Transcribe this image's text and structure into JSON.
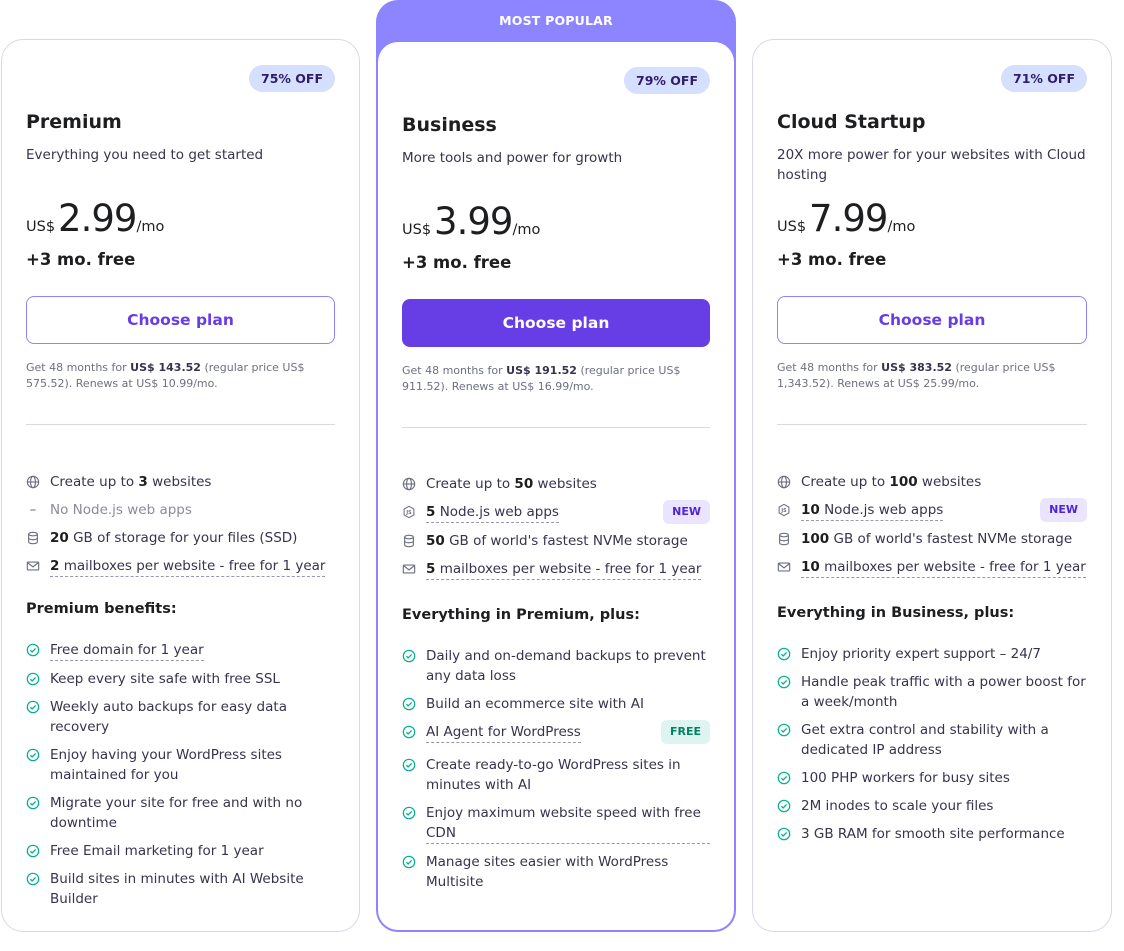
{
  "plans": [
    {
      "badge": "75% OFF",
      "name": "Premium",
      "desc": "Everything you need to get started",
      "currency": "US$",
      "amount": "2.99",
      "period": "/mo",
      "free": "+3 mo. free",
      "button": "Choose plan",
      "fine": {
        "prefix": "Get 48 months for ",
        "total": "US$ 143.52",
        "suffix": " (regular price US$ 575.52). Renews at US$ 10.99/mo."
      },
      "features": [
        {
          "icon": "globe-icon",
          "pre": "Create up to ",
          "bold": "3",
          "post": " websites"
        },
        {
          "icon": "dash-icon",
          "text": "No Node.js web apps"
        },
        {
          "icon": "database-icon",
          "bold": "20",
          "post": " GB of storage for your files (SSD)"
        },
        {
          "icon": "mail-icon",
          "bold": "2",
          "under": " mailboxes per website - free for 1 year"
        }
      ],
      "benefits_title": "Premium benefits:",
      "benefits": [
        {
          "text": "Free domain for 1 year",
          "underline": true
        },
        {
          "text": "Keep every site safe with free SSL"
        },
        {
          "text": "Weekly auto backups for easy data recovery"
        },
        {
          "text": "Enjoy having your WordPress sites maintained for you"
        },
        {
          "text": "Migrate your site for free and with no downtime"
        },
        {
          "text": "Free Email marketing for 1 year"
        },
        {
          "text": "Build sites in minutes with AI Website Builder"
        }
      ]
    },
    {
      "ribbon": "MOST POPULAR",
      "badge": "79% OFF",
      "name": "Business",
      "desc": "More tools and power for growth",
      "currency": "US$",
      "amount": "3.99",
      "period": "/mo",
      "free": "+3 mo. free",
      "button": "Choose plan",
      "fine": {
        "prefix": "Get 48 months for ",
        "total": "US$ 191.52",
        "suffix": " (regular price US$ 911.52). Renews at US$ 16.99/mo."
      },
      "features": [
        {
          "icon": "globe-icon",
          "pre": "Create up to ",
          "bold": "50",
          "post": " websites"
        },
        {
          "icon": "nodejs-icon",
          "bold": "5",
          "under": " Node.js web apps",
          "tag": "NEW"
        },
        {
          "icon": "database-icon",
          "bold": "50",
          "post": " GB of world's fastest NVMe storage"
        },
        {
          "icon": "mail-icon",
          "bold": "5",
          "under": " mailboxes per website - free for 1 year"
        }
      ],
      "benefits_title": "Everything in Premium, plus:",
      "benefits": [
        {
          "text": "Daily and on-demand backups to prevent any data loss"
        },
        {
          "text": "Build an ecommerce site with AI"
        },
        {
          "text": "AI Agent for WordPress",
          "underline": true,
          "tag": "FREE"
        },
        {
          "text": "Create ready-to-go WordPress sites in minutes with AI"
        },
        {
          "text": "Enjoy maximum website speed with free CDN",
          "underline": true
        },
        {
          "text": "Manage sites easier with WordPress Multisite"
        }
      ]
    },
    {
      "badge": "71% OFF",
      "name": "Cloud Startup",
      "desc": "20X more power for your websites with Cloud hosting",
      "currency": "US$",
      "amount": "7.99",
      "period": "/mo",
      "free": "+3 mo. free",
      "button": "Choose plan",
      "fine": {
        "prefix": "Get 48 months for ",
        "total": "US$ 383.52",
        "suffix": " (regular price US$ 1,343.52). Renews at US$ 25.99/mo."
      },
      "features": [
        {
          "icon": "globe-icon",
          "pre": "Create up to ",
          "bold": "100",
          "post": " websites"
        },
        {
          "icon": "nodejs-icon",
          "bold": "10",
          "under": " Node.js web apps",
          "tag": "NEW"
        },
        {
          "icon": "database-icon",
          "bold": "100",
          "post": " GB of world's fastest NVMe storage"
        },
        {
          "icon": "mail-icon",
          "bold": "10",
          "under": " mailboxes per website - free for 1 year"
        }
      ],
      "benefits_title": "Everything in Business, plus:",
      "benefits": [
        {
          "text": "Enjoy priority expert support – 24/7"
        },
        {
          "text": "Handle peak traffic with a power boost for a week/month"
        },
        {
          "text": "Get extra control and stability with a dedicated IP address"
        },
        {
          "text": "100 PHP workers for busy sites"
        },
        {
          "text": "2M inodes to scale your files"
        },
        {
          "text": "3 GB RAM for smooth site performance"
        }
      ]
    }
  ],
  "colors": {
    "accent": "#673de6",
    "popular_border": "#8c85ff",
    "badge_bg": "#d5dfff",
    "check": "#00b090"
  }
}
